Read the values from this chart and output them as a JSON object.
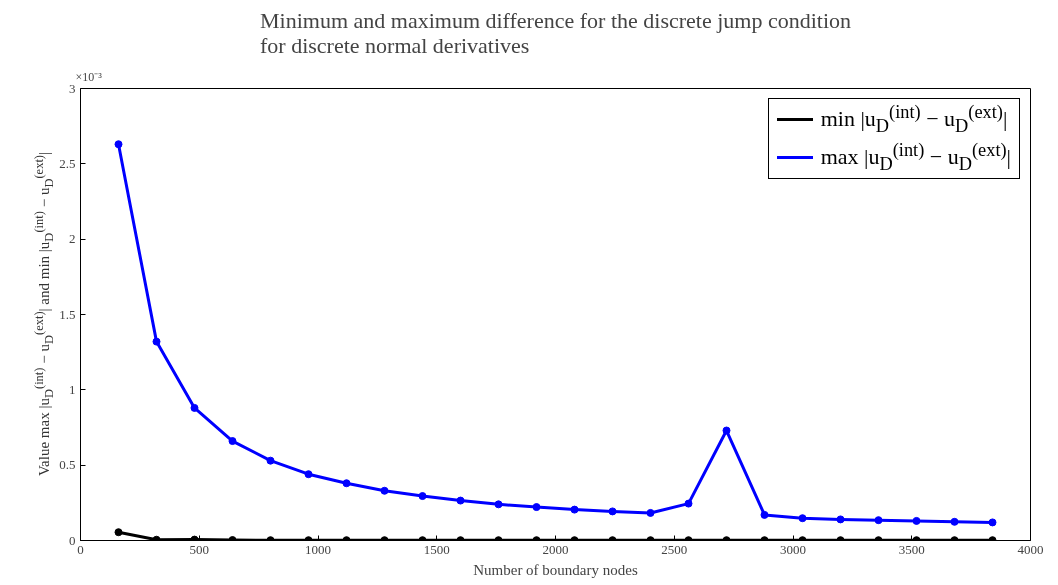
{
  "chart_data": {
    "type": "line",
    "title": "Minimum and maximum difference for the discrete jump condition\nfor discrete normal derivatives",
    "xlabel": "Number of boundary nodes",
    "ylabel": "Value max |u$_{D}$$^{(int)}$ − u$_{D}$$^{(ext)}$| and min |u$_{D}$$^{(int)}$ − u$_{D}$$^{(ext)}$|",
    "annotations": [
      "×10⁻³"
    ],
    "x": [
      160,
      320,
      480,
      640,
      800,
      960,
      1120,
      1280,
      1440,
      1600,
      1760,
      1920,
      2080,
      2240,
      2400,
      2560,
      2720,
      2880,
      3040,
      3200,
      3360,
      3520,
      3680,
      3840
    ],
    "series": [
      {
        "name": "min |u$_{D}$$^{(int)}$ − u$_{D}$$^{(ext)}$|",
        "color": "#000000",
        "values": [
          0.055,
          0.005,
          0.006,
          0.003,
          0.002,
          0.002,
          0.002,
          0.002,
          0.002,
          0.002,
          0.002,
          0.002,
          0.002,
          0.002,
          0.002,
          0.002,
          0.002,
          0.002,
          0.002,
          0.002,
          0.002,
          0.002,
          0.002,
          0.002
        ]
      },
      {
        "name": "max |u$_{D}$$^{(int)}$ − u$_{D}$$^{(ext)}$|",
        "color": "#0000ff",
        "values": [
          2.63,
          1.32,
          0.88,
          0.66,
          0.53,
          0.44,
          0.38,
          0.33,
          0.295,
          0.265,
          0.24,
          0.222,
          0.205,
          0.193,
          0.183,
          0.245,
          0.73,
          0.17,
          0.148,
          0.14,
          0.135,
          0.13,
          0.124,
          0.12
        ]
      }
    ],
    "xlim": [
      0,
      4000
    ],
    "xticks": [
      0,
      500,
      1000,
      1500,
      2000,
      2500,
      3000,
      3500,
      4000
    ],
    "ylim": [
      0,
      3
    ],
    "yticks": [
      0,
      0.5,
      1,
      1.5,
      2,
      2.5,
      3
    ],
    "grid": false,
    "legend": "top right",
    "marker": "circle",
    "line_style": "solid"
  }
}
